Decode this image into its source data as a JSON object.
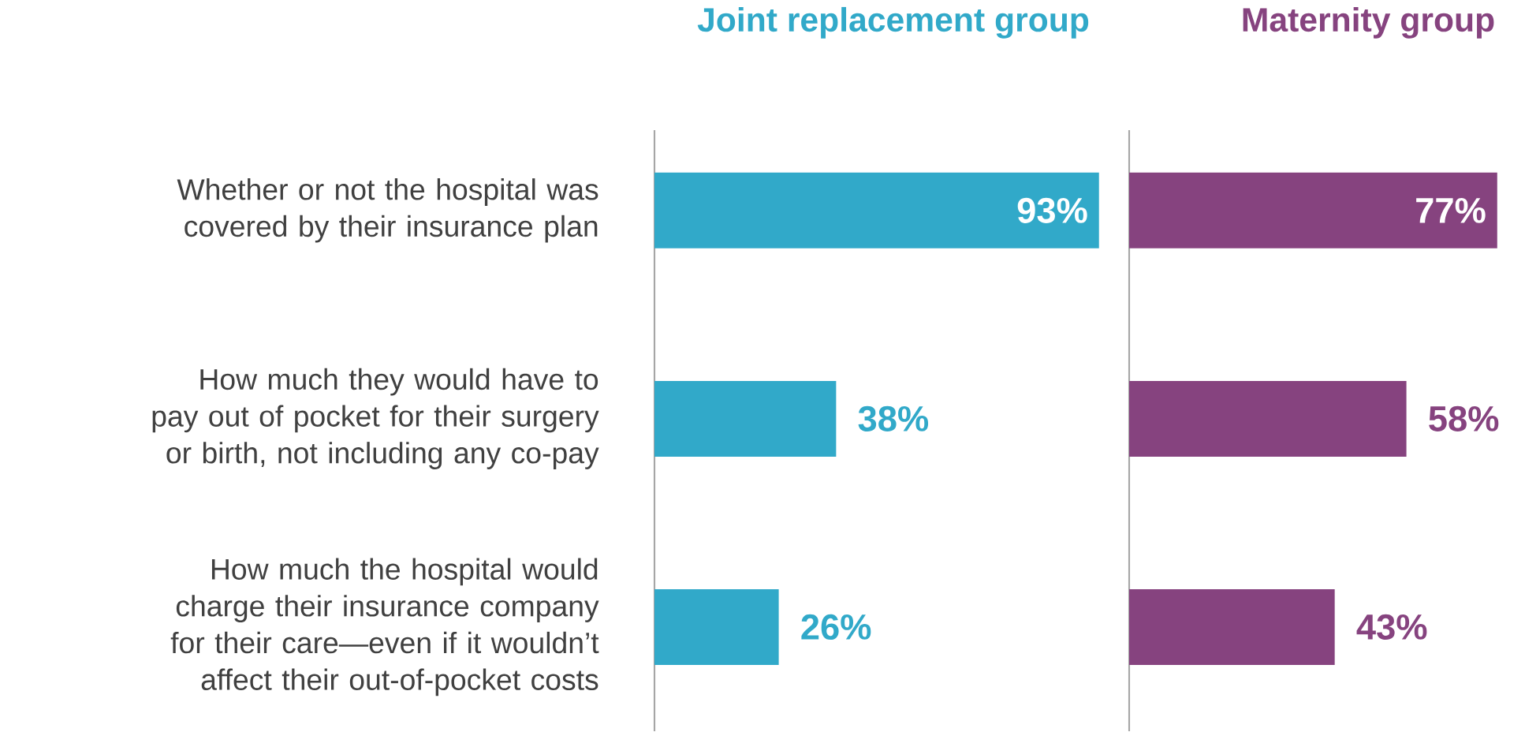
{
  "chart_data": [
    {
      "type": "bar",
      "orientation": "horizontal",
      "title": "Joint replacement group",
      "color": "#31a9c9",
      "tick_labels": "y",
      "categories": [
        "Whether or not the hospital was covered by their insurance plan",
        "How much they would have to pay out of pocket for their surgery or birth, not including any co-pay",
        "How much the hospital would charge their insurance company for their care—even if it wouldn’t affect their out-of-pocket costs"
      ],
      "values": [
        93,
        38,
        26
      ],
      "value_labels": [
        "93%",
        "38%",
        "26%"
      ]
    },
    {
      "type": "bar",
      "orientation": "horizontal",
      "title": "Maternity group",
      "color": "#86437f",
      "tick_labels": false,
      "categories": [
        null,
        null,
        null
      ],
      "values": [
        77,
        58,
        43
      ],
      "value_labels": [
        "77%",
        "58%",
        "43%"
      ]
    }
  ]
}
